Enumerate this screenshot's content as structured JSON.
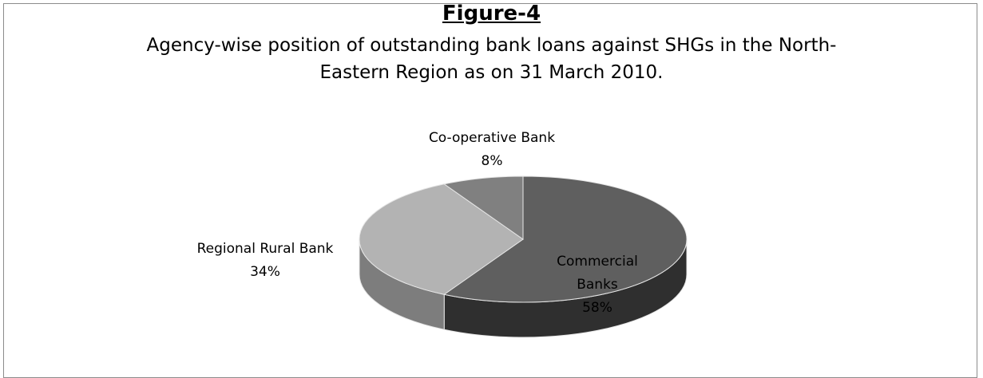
{
  "figure_label": "Figure-4",
  "title_line1": "Agency-wise position of outstanding bank loans against SHGs in the North-",
  "title_line2": "Eastern Region as on 31 March 2010.",
  "chart_data": {
    "type": "pie",
    "style": "3d",
    "title": "Agency-wise position of outstanding bank loans against SHGs in the North-Eastern Region as on 31 March 2010.",
    "slices": [
      {
        "label": "Commercial Banks",
        "value": 58,
        "pct_label": "58%",
        "color": "#5f5f5f",
        "side_color": "#2f2f2f"
      },
      {
        "label": "Regional Rural Bank",
        "value": 34,
        "pct_label": "34%",
        "color": "#b3b3b3",
        "side_color": "#7d7d7d"
      },
      {
        "label": "Co-operative Bank",
        "value": 8,
        "pct_label": "8%",
        "color": "#808080",
        "side_color": "#555555"
      }
    ],
    "unit": "%"
  }
}
